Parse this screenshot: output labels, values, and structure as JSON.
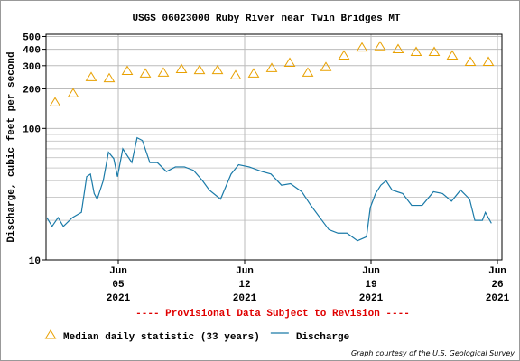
{
  "chart_data": {
    "type": "line",
    "title": "USGS 06023000 Ruby River near Twin Bridges MT",
    "ylabel": "Discharge, cubic feet per second",
    "annotation": "---- Provisional Data Subject to Revision ----",
    "credit": "Graph courtesy of the U.S. Geological Survey",
    "log_y": true,
    "grid": true,
    "legend": "bottom",
    "xlim": [
      "2021-06-01T00:00",
      "2021-06-26T06:00"
    ],
    "xticks": [
      {
        "value": "2021-06-05T00:00",
        "label": [
          "Jun",
          "05",
          "2021"
        ]
      },
      {
        "value": "2021-06-12T00:00",
        "label": [
          "Jun",
          "12",
          "2021"
        ]
      },
      {
        "value": "2021-06-19T00:00",
        "label": [
          "Jun",
          "19",
          "2021"
        ]
      },
      {
        "value": "2021-06-26T00:00",
        "label": [
          "Jun",
          "26",
          "2021"
        ]
      }
    ],
    "ylim": [
      10,
      520
    ],
    "yticks": [
      10,
      100,
      200,
      300,
      400,
      500
    ],
    "minor_yticks": [
      20,
      30,
      40,
      50,
      60,
      70,
      80,
      90
    ],
    "series": [
      {
        "name": "Median daily statistic (33 years)",
        "color": "#e8a000",
        "marker": "triangle",
        "x": [
          "2021-06-01T12:00",
          "2021-06-02T12:00",
          "2021-06-03T12:00",
          "2021-06-04T12:00",
          "2021-06-05T12:00",
          "2021-06-06T12:00",
          "2021-06-07T12:00",
          "2021-06-08T12:00",
          "2021-06-09T12:00",
          "2021-06-10T12:00",
          "2021-06-11T12:00",
          "2021-06-12T12:00",
          "2021-06-13T12:00",
          "2021-06-14T12:00",
          "2021-06-15T12:00",
          "2021-06-16T12:00",
          "2021-06-17T12:00",
          "2021-06-18T12:00",
          "2021-06-19T12:00",
          "2021-06-20T12:00",
          "2021-06-21T12:00",
          "2021-06-22T12:00",
          "2021-06-23T12:00",
          "2021-06-24T12:00",
          "2021-06-25T12:00"
        ],
        "values": [
          158,
          185,
          246,
          241,
          274,
          262,
          266,
          283,
          278,
          278,
          254,
          262,
          288,
          316,
          266,
          293,
          359,
          413,
          422,
          401,
          382,
          382,
          359,
          321,
          321
        ]
      },
      {
        "name": "Discharge",
        "color": "#1a7aa8",
        "marker": "line",
        "x": [
          "2021-06-01T01:00",
          "2021-06-01T08:00",
          "2021-06-01T16:00",
          "2021-06-01T23:00",
          "2021-06-02T11:00",
          "2021-06-02T23:00",
          "2021-06-03T06:00",
          "2021-06-03T11:00",
          "2021-06-03T16:00",
          "2021-06-03T20:00",
          "2021-06-04T04:00",
          "2021-06-04T11:00",
          "2021-06-04T18:00",
          "2021-06-04T23:00",
          "2021-06-05T06:00",
          "2021-06-05T18:00",
          "2021-06-06T01:00",
          "2021-06-06T08:00",
          "2021-06-06T18:00",
          "2021-06-07T04:00",
          "2021-06-07T16:00",
          "2021-06-08T04:00",
          "2021-06-08T16:00",
          "2021-06-09T04:00",
          "2021-06-09T16:00",
          "2021-06-10T01:00",
          "2021-06-10T16:00",
          "2021-06-11T06:00",
          "2021-06-11T16:00",
          "2021-06-12T06:00",
          "2021-06-12T23:00",
          "2021-06-13T11:00",
          "2021-06-14T01:00",
          "2021-06-14T13:00",
          "2021-06-15T04:00",
          "2021-06-15T16:00",
          "2021-06-16T04:00",
          "2021-06-16T16:00",
          "2021-06-17T04:00",
          "2021-06-17T16:00",
          "2021-06-18T06:00",
          "2021-06-18T18:00",
          "2021-06-18T23:00",
          "2021-06-19T06:00",
          "2021-06-19T13:00",
          "2021-06-19T20:00",
          "2021-06-20T04:00",
          "2021-06-20T18:00",
          "2021-06-21T06:00",
          "2021-06-21T20:00",
          "2021-06-22T11:00",
          "2021-06-22T23:00",
          "2021-06-23T11:00",
          "2021-06-23T23:00",
          "2021-06-24T11:00",
          "2021-06-24T18:00",
          "2021-06-25T04:00",
          "2021-06-25T08:00",
          "2021-06-25T16:00"
        ],
        "values": [
          21,
          18,
          21,
          18,
          21,
          23,
          43,
          45,
          32,
          29,
          40,
          66,
          59,
          43,
          70,
          55,
          85,
          81,
          55,
          55,
          47,
          51,
          51,
          48,
          40,
          34,
          29,
          45,
          53,
          51,
          47,
          45,
          37,
          38,
          33,
          26,
          21,
          17,
          16,
          16,
          14,
          15,
          25,
          32,
          37,
          40,
          34,
          32,
          26,
          26,
          33,
          32,
          28,
          34,
          29,
          20,
          20,
          23,
          19
        ]
      }
    ]
  }
}
